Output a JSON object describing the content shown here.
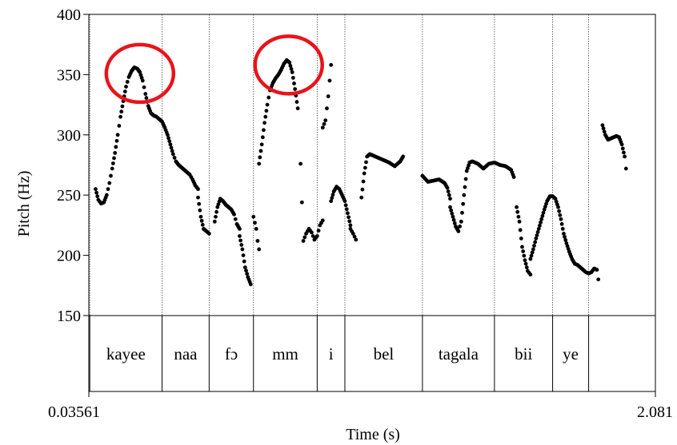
{
  "chart_data": {
    "type": "scatter",
    "title": "",
    "xlabel": "Time (s)",
    "ylabel": "Pitch (Hz)",
    "xlim": [
      0.03561,
      2.081
    ],
    "ylim": [
      150,
      400
    ],
    "x_tick_labels": [
      "0.03561",
      "2.081"
    ],
    "y_ticks": [
      150,
      200,
      250,
      300,
      350,
      400
    ],
    "y_tick_labels": [
      "150",
      "200",
      "250",
      "300",
      "350",
      "400"
    ],
    "grid": false,
    "marker_color": "#000000",
    "highlight_color": "#e8141b",
    "boundaries": [
      0.039,
      0.3,
      0.47,
      0.63,
      0.86,
      0.96,
      1.24,
      1.5,
      1.71,
      1.84
    ],
    "words": [
      {
        "label": "kayee",
        "start": 0.039,
        "end": 0.3
      },
      {
        "label": "naa",
        "start": 0.3,
        "end": 0.47
      },
      {
        "label": "fɔ",
        "start": 0.47,
        "end": 0.63
      },
      {
        "label": "mm",
        "start": 0.63,
        "end": 0.86
      },
      {
        "label": "i",
        "start": 0.86,
        "end": 0.96
      },
      {
        "label": "bel",
        "start": 0.96,
        "end": 1.24
      },
      {
        "label": "tagala",
        "start": 1.24,
        "end": 1.5
      },
      {
        "label": "bii",
        "start": 1.5,
        "end": 1.71
      },
      {
        "label": "ye",
        "start": 1.71,
        "end": 1.84
      }
    ],
    "highlights": [
      {
        "x": 0.22,
        "y": 351
      },
      {
        "x": 0.757,
        "y": 358
      }
    ],
    "segments": [
      {
        "pts": [
          [
            0.06,
            255
          ],
          [
            0.07,
            246
          ],
          [
            0.08,
            243
          ],
          [
            0.09,
            244
          ],
          [
            0.1,
            250
          ],
          [
            0.11,
            260
          ],
          [
            0.12,
            272
          ],
          [
            0.13,
            285
          ],
          [
            0.14,
            300
          ],
          [
            0.15,
            315
          ],
          [
            0.16,
            328
          ],
          [
            0.17,
            340
          ],
          [
            0.18,
            348
          ],
          [
            0.19,
            353
          ],
          [
            0.2,
            356
          ],
          [
            0.21,
            355
          ],
          [
            0.22,
            352
          ],
          [
            0.23,
            345
          ],
          [
            0.24,
            334
          ],
          [
            0.25,
            324
          ],
          [
            0.26,
            318
          ],
          [
            0.27,
            316
          ],
          [
            0.28,
            315
          ],
          [
            0.29,
            313
          ],
          [
            0.3,
            311
          ],
          [
            0.31,
            306
          ],
          [
            0.32,
            300
          ],
          [
            0.33,
            292
          ],
          [
            0.34,
            284
          ],
          [
            0.35,
            278
          ],
          [
            0.36,
            275
          ],
          [
            0.37,
            273
          ],
          [
            0.38,
            271
          ],
          [
            0.39,
            269
          ],
          [
            0.4,
            267
          ],
          [
            0.41,
            263
          ],
          [
            0.42,
            258
          ],
          [
            0.43,
            255
          ]
        ],
        "step": 0.004
      },
      {
        "pts": [
          [
            0.43,
            248
          ],
          [
            0.44,
            232
          ],
          [
            0.45,
            222
          ],
          [
            0.46,
            220
          ],
          [
            0.47,
            218
          ]
        ],
        "step": 0.004
      },
      {
        "pts": [
          [
            0.49,
            228
          ],
          [
            0.5,
            240
          ],
          [
            0.51,
            247
          ],
          [
            0.52,
            245
          ],
          [
            0.53,
            242
          ],
          [
            0.54,
            240
          ],
          [
            0.55,
            238
          ],
          [
            0.56,
            234
          ],
          [
            0.57,
            226
          ],
          [
            0.58,
            222
          ]
        ],
        "step": 0.004
      },
      {
        "pts": [
          [
            0.58,
            216
          ],
          [
            0.59,
            205
          ],
          [
            0.6,
            190
          ],
          [
            0.61,
            182
          ],
          [
            0.62,
            176
          ]
        ],
        "step": 0.004
      },
      {
        "pts": [
          [
            0.63,
            232
          ],
          [
            0.64,
            222
          ],
          [
            0.645,
            212
          ],
          [
            0.65,
            205
          ]
        ],
        "step": 0.005
      },
      {
        "pts": [
          [
            0.65,
            276
          ],
          [
            0.66,
            292
          ],
          [
            0.67,
            310
          ],
          [
            0.68,
            325
          ],
          [
            0.69,
            337
          ],
          [
            0.7,
            343
          ],
          [
            0.71,
            347
          ],
          [
            0.72,
            350
          ],
          [
            0.73,
            354
          ],
          [
            0.74,
            359
          ],
          [
            0.75,
            362
          ],
          [
            0.76,
            360
          ],
          [
            0.77,
            352
          ],
          [
            0.78,
            338
          ],
          [
            0.79,
            322
          ]
        ],
        "step": 0.004
      },
      {
        "pts": [
          [
            0.8,
            276
          ],
          [
            0.81,
            212
          ],
          [
            0.82,
            218
          ],
          [
            0.83,
            222
          ],
          [
            0.84,
            219
          ],
          [
            0.85,
            213
          ],
          [
            0.86,
            216
          ],
          [
            0.87,
            225
          ],
          [
            0.88,
            229
          ]
        ],
        "step": 0.005
      },
      {
        "pts": [
          [
            0.88,
            306
          ],
          [
            0.89,
            312
          ],
          [
            0.9,
            332
          ],
          [
            0.91,
            358
          ]
        ],
        "step": 0.005
      },
      {
        "pts": [
          [
            0.91,
            245
          ],
          [
            0.92,
            253
          ],
          [
            0.93,
            257
          ],
          [
            0.94,
            255
          ],
          [
            0.95,
            250
          ],
          [
            0.96,
            245
          ],
          [
            0.97,
            235
          ],
          [
            0.98,
            225
          ]
        ],
        "step": 0.004
      },
      {
        "pts": [
          [
            0.98,
            222
          ],
          [
            0.99,
            218
          ],
          [
            1.0,
            213
          ]
        ],
        "step": 0.005
      },
      {
        "pts": [
          [
            1.02,
            248
          ],
          [
            1.03,
            268
          ],
          [
            1.04,
            282
          ],
          [
            1.05,
            284
          ],
          [
            1.06,
            283
          ],
          [
            1.08,
            281
          ],
          [
            1.1,
            279
          ],
          [
            1.12,
            277
          ],
          [
            1.14,
            274
          ],
          [
            1.16,
            278
          ],
          [
            1.17,
            282
          ]
        ],
        "step": 0.004
      },
      {
        "pts": [
          [
            1.24,
            266
          ],
          [
            1.26,
            261
          ],
          [
            1.28,
            262
          ],
          [
            1.3,
            263
          ],
          [
            1.32,
            260
          ],
          [
            1.33,
            256
          ],
          [
            1.34,
            247
          ]
        ],
        "step": 0.004
      },
      {
        "pts": [
          [
            1.34,
            240
          ],
          [
            1.35,
            232
          ],
          [
            1.36,
            224
          ],
          [
            1.37,
            220
          ],
          [
            1.38,
            228
          ],
          [
            1.39,
            250
          ],
          [
            1.4,
            270
          ],
          [
            1.41,
            277
          ],
          [
            1.42,
            278
          ],
          [
            1.44,
            276
          ],
          [
            1.46,
            272
          ],
          [
            1.48,
            276
          ],
          [
            1.5,
            277
          ],
          [
            1.52,
            275
          ],
          [
            1.54,
            274
          ],
          [
            1.56,
            271
          ],
          [
            1.57,
            265
          ]
        ],
        "step": 0.004
      },
      {
        "pts": [
          [
            1.58,
            240
          ],
          [
            1.59,
            228
          ],
          [
            1.6,
            207
          ],
          [
            1.61,
            196
          ],
          [
            1.62,
            187
          ],
          [
            1.63,
            184
          ]
        ],
        "step": 0.004
      },
      {
        "pts": [
          [
            1.63,
            197
          ],
          [
            1.64,
            205
          ],
          [
            1.65,
            214
          ],
          [
            1.66,
            222
          ],
          [
            1.67,
            230
          ],
          [
            1.68,
            238
          ],
          [
            1.69,
            245
          ],
          [
            1.7,
            249
          ],
          [
            1.71,
            249
          ],
          [
            1.72,
            247
          ],
          [
            1.73,
            240
          ],
          [
            1.74,
            230
          ],
          [
            1.75,
            218
          ],
          [
            1.76,
            210
          ],
          [
            1.77,
            203
          ],
          [
            1.78,
            197
          ],
          [
            1.79,
            193
          ],
          [
            1.8,
            192
          ],
          [
            1.81,
            190
          ],
          [
            1.82,
            188
          ],
          [
            1.83,
            186
          ],
          [
            1.84,
            185
          ],
          [
            1.85,
            186
          ],
          [
            1.86,
            189
          ],
          [
            1.87,
            188
          ]
        ],
        "step": 0.004
      },
      {
        "pts": [
          [
            1.875,
            180
          ]
        ],
        "step": 0.004
      },
      {
        "pts": [
          [
            1.89,
            308
          ],
          [
            1.9,
            300
          ],
          [
            1.91,
            296
          ],
          [
            1.92,
            297
          ],
          [
            1.93,
            298
          ],
          [
            1.94,
            299
          ],
          [
            1.95,
            298
          ],
          [
            1.96,
            292
          ],
          [
            1.97,
            282
          ],
          [
            1.975,
            272
          ]
        ],
        "step": 0.004
      }
    ]
  }
}
